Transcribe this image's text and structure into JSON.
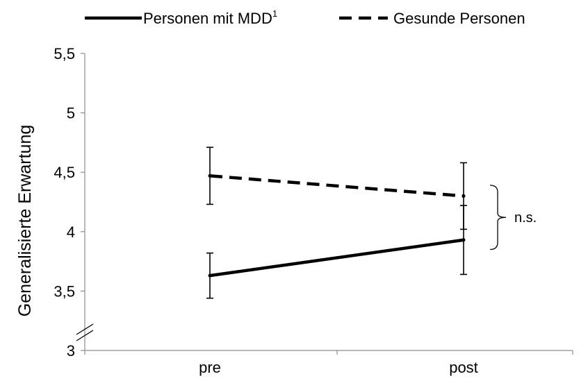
{
  "chart_data": {
    "type": "line",
    "categories": [
      "pre",
      "post"
    ],
    "ylabel": "Generalisierte Erwartung",
    "xlabel": "",
    "ylim": [
      3,
      5.5
    ],
    "y_ticks": [
      "3",
      "3,5",
      "4",
      "4,5",
      "5",
      "5,5"
    ],
    "y_tick_values": [
      3,
      3.5,
      4,
      4.5,
      5,
      5.5
    ],
    "axis_break": true,
    "grid": false,
    "legend_position": "top",
    "series": [
      {
        "name": "Personen mit MDD",
        "name_superscript": "1",
        "style": "solid",
        "color": "#000000",
        "values": [
          3.63,
          3.93
        ],
        "error_upper": [
          3.82,
          4.22
        ],
        "error_lower": [
          3.44,
          3.64
        ]
      },
      {
        "name": "Gesunde Personen",
        "style": "dashed",
        "color": "#000000",
        "values": [
          4.47,
          4.3
        ],
        "error_upper": [
          4.71,
          4.58
        ],
        "error_lower": [
          4.23,
          4.02
        ]
      }
    ],
    "annotations": [
      {
        "text": "n.s.",
        "type": "bracket",
        "y_from": 3.85,
        "y_to": 4.39
      }
    ]
  }
}
